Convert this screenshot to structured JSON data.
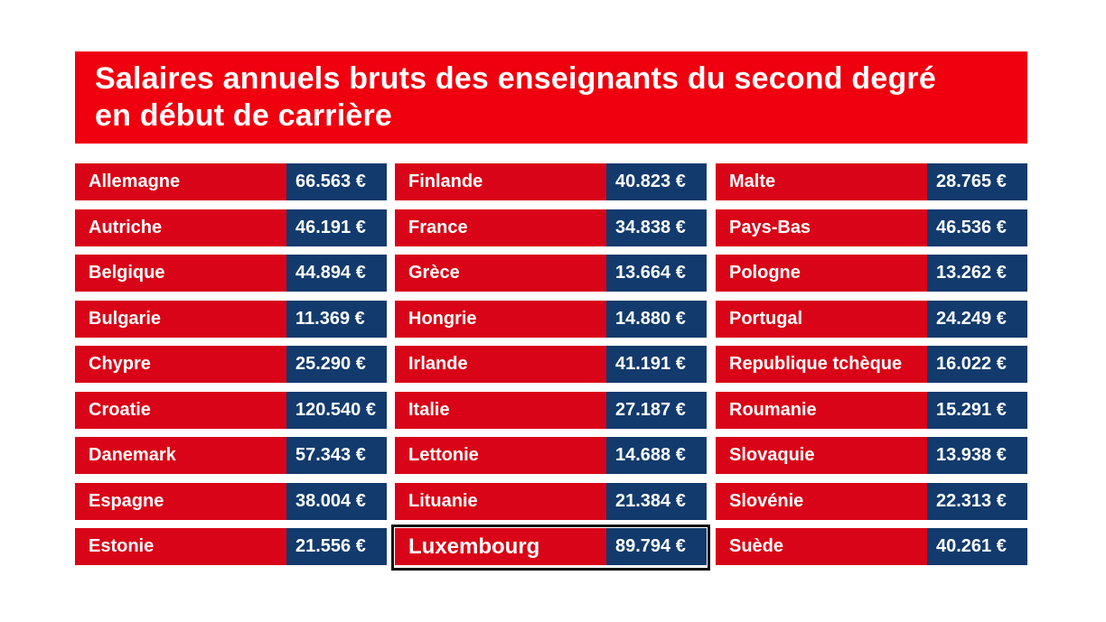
{
  "title": {
    "line1": "Salaires  annuels bruts des enseignants du second degré",
    "line2": "en début de carrière"
  },
  "colors": {
    "title_red": "#f0000e",
    "country_red": "#d90417",
    "value_navy": "#123a6d",
    "text": "#ffffff"
  },
  "columns": [
    [
      {
        "country": "Allemagne",
        "value": "66.563 €"
      },
      {
        "country": "Autriche",
        "value": "46.191 €"
      },
      {
        "country": "Belgique",
        "value": "44.894 €"
      },
      {
        "country": "Bulgarie",
        "value": "11.369 €"
      },
      {
        "country": "Chypre",
        "value": "25.290 €"
      },
      {
        "country": "Croatie",
        "value": "120.540 €"
      },
      {
        "country": "Danemark",
        "value": "57.343 €"
      },
      {
        "country": "Espagne",
        "value": "38.004 €"
      },
      {
        "country": "Estonie",
        "value": "21.556 €"
      }
    ],
    [
      {
        "country": "Finlande",
        "value": "40.823 €"
      },
      {
        "country": "France",
        "value": "34.838 €"
      },
      {
        "country": "Grèce",
        "value": "13.664 €"
      },
      {
        "country": "Hongrie",
        "value": "14.880 €"
      },
      {
        "country": "Irlande",
        "value": "41.191 €"
      },
      {
        "country": "Italie",
        "value": "27.187 €"
      },
      {
        "country": "Lettonie",
        "value": "14.688 €"
      },
      {
        "country": "Lituanie",
        "value": "21.384 €"
      },
      {
        "country": "Luxembourg",
        "value": "89.794 €",
        "highlighted": true
      }
    ],
    [
      {
        "country": "Malte",
        "value": "28.765 €"
      },
      {
        "country": "Pays-Bas",
        "value": "46.536 €"
      },
      {
        "country": "Pologne",
        "value": "13.262 €"
      },
      {
        "country": "Portugal",
        "value": "24.249 €"
      },
      {
        "country": "Republique tchèque",
        "value": "16.022 €"
      },
      {
        "country": "Roumanie",
        "value": "15.291 €"
      },
      {
        "country": "Slovaquie",
        "value": "13.938 €"
      },
      {
        "country": "Slovénie",
        "value": "22.313 €"
      },
      {
        "country": "Suède",
        "value": "40.261 €"
      }
    ]
  ]
}
